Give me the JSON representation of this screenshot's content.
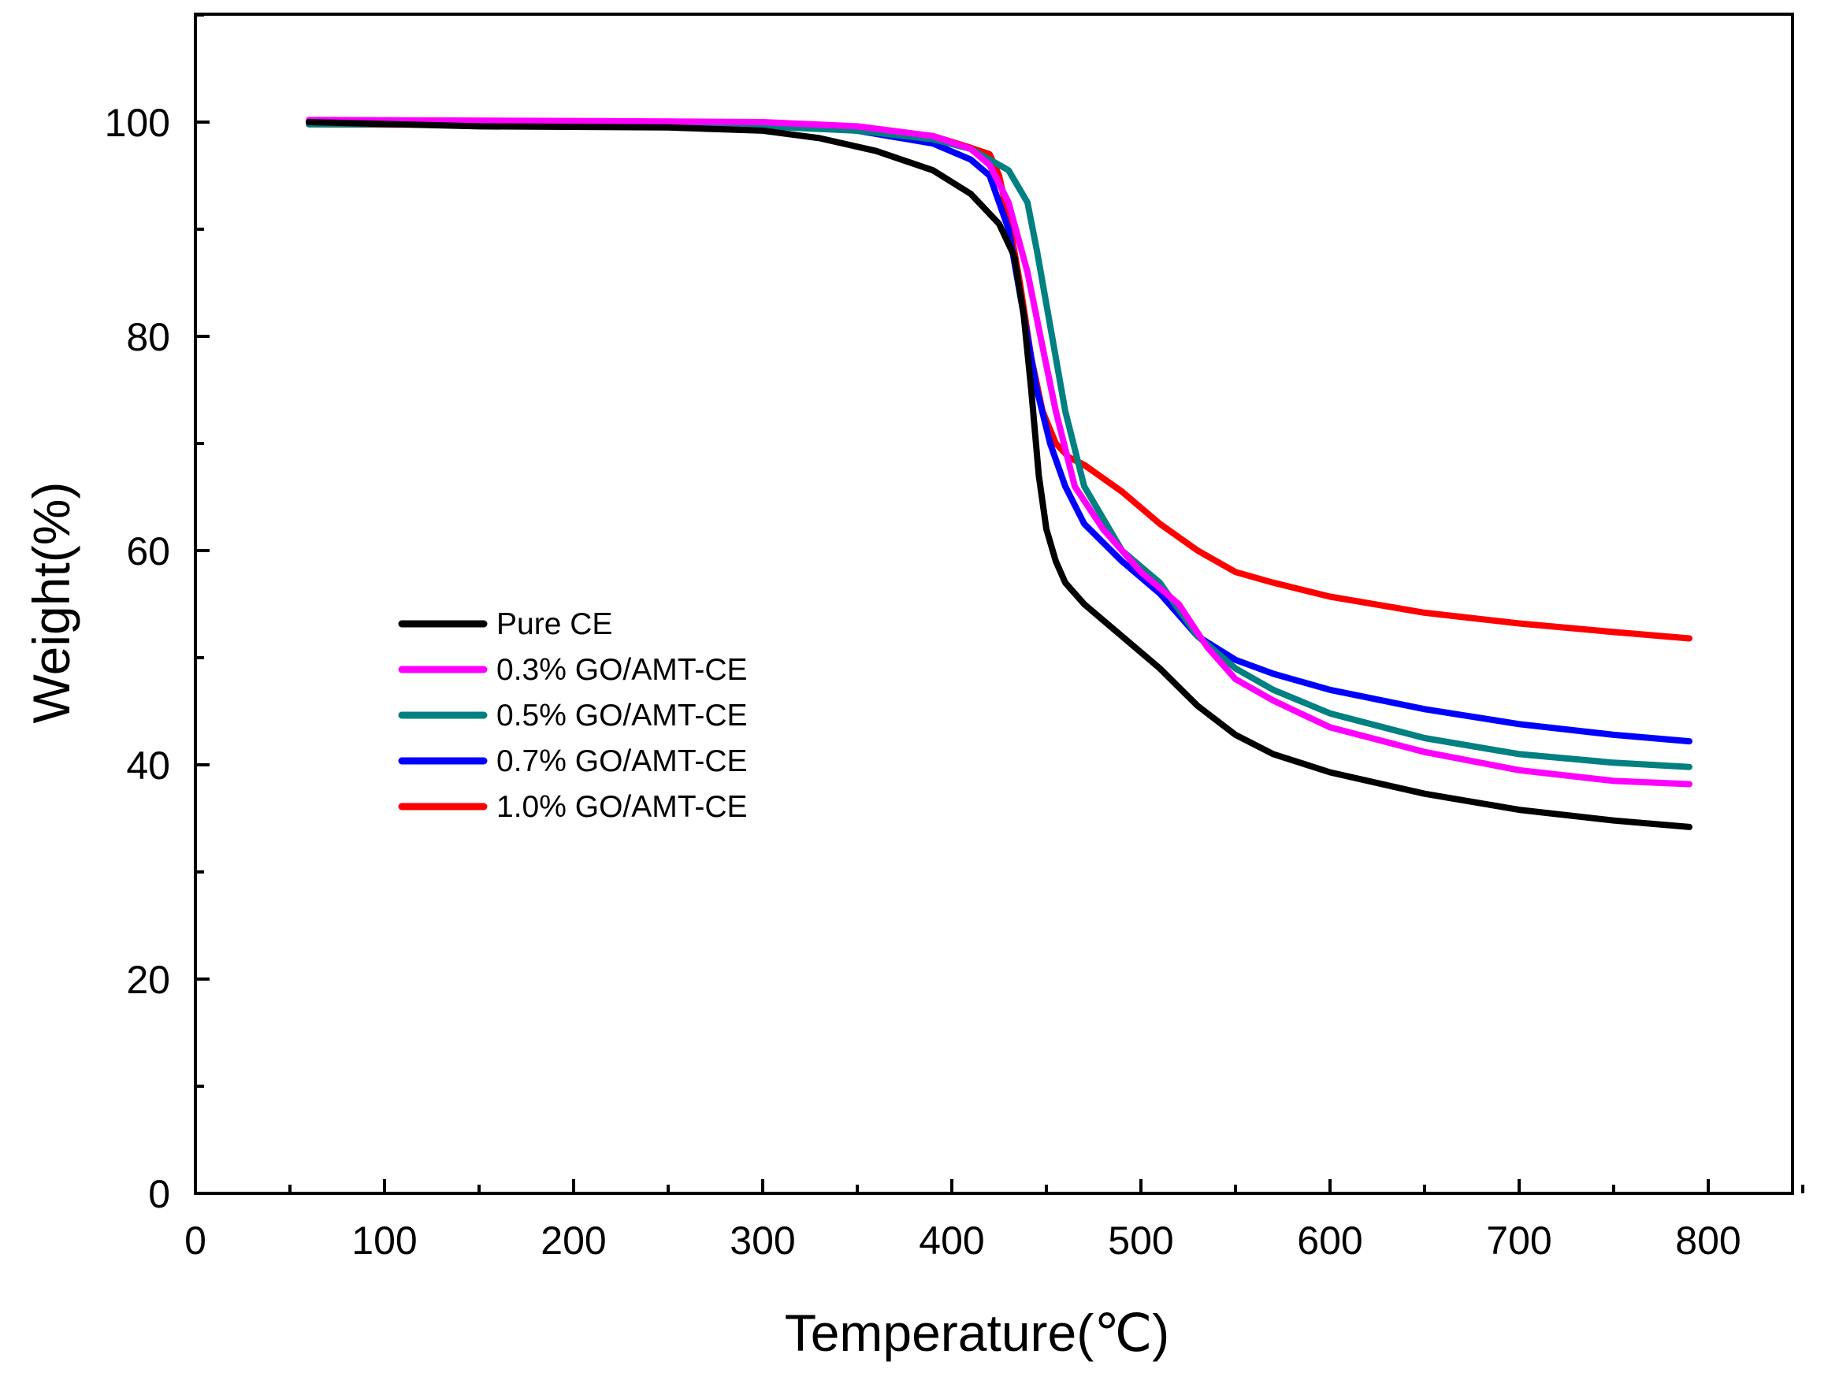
{
  "chart_data": {
    "type": "line",
    "title": "",
    "xlabel": "Temperature(℃)",
    "ylabel": "Weight(%)",
    "xlim": [
      0,
      850
    ],
    "ylim": [
      0,
      110
    ],
    "xticks": [
      0,
      100,
      200,
      300,
      400,
      500,
      600,
      700,
      800
    ],
    "yticks": [
      0,
      20,
      40,
      60,
      80,
      100
    ],
    "grid": false,
    "legend_position": "center-left",
    "series": [
      {
        "name": "Pure CE",
        "color": "#000000",
        "x": [
          60,
          150,
          250,
          300,
          330,
          360,
          390,
          410,
          425,
          433,
          438,
          442,
          446,
          450,
          455,
          460,
          470,
          490,
          510,
          530,
          550,
          570,
          600,
          650,
          700,
          750,
          790
        ],
        "y": [
          100,
          99.6,
          99.5,
          99.2,
          98.5,
          97.3,
          95.5,
          93.3,
          90.5,
          87.5,
          82,
          75,
          67,
          62,
          59,
          57,
          55,
          52,
          49,
          45.5,
          42.8,
          41,
          39.3,
          37.3,
          35.8,
          34.8,
          34.2
        ]
      },
      {
        "name": "0.3% GO/AMT-CE",
        "color": "#ff00ff",
        "x": [
          60,
          200,
          300,
          350,
          390,
          410,
          420,
          430,
          440,
          448,
          455,
          465,
          480,
          500,
          520,
          535,
          550,
          570,
          600,
          650,
          700,
          750,
          790
        ],
        "y": [
          100.2,
          100.1,
          100,
          99.6,
          98.7,
          97.5,
          96,
          92.5,
          86,
          79,
          73,
          66,
          62,
          58,
          55,
          51,
          48,
          46,
          43.5,
          41.2,
          39.5,
          38.5,
          38.2
        ]
      },
      {
        "name": "0.5% GO/AMT-CE",
        "color": "#008080",
        "x": [
          60,
          200,
          300,
          350,
          390,
          410,
          420,
          430,
          440,
          445,
          450,
          455,
          460,
          470,
          490,
          510,
          530,
          550,
          570,
          600,
          650,
          700,
          750,
          790
        ],
        "y": [
          99.8,
          99.8,
          99.6,
          99.2,
          98.4,
          97.5,
          96.5,
          95.5,
          92.5,
          88,
          83,
          78,
          73,
          66,
          60,
          57,
          52,
          49,
          47,
          44.8,
          42.5,
          41,
          40.2,
          39.8
        ]
      },
      {
        "name": "0.7% GO/AMT-CE",
        "color": "#0000ff",
        "x": [
          60,
          200,
          300,
          350,
          390,
          410,
          420,
          430,
          438,
          445,
          452,
          460,
          470,
          490,
          510,
          530,
          550,
          570,
          600,
          650,
          700,
          750,
          790
        ],
        "y": [
          100,
          100,
          99.8,
          99.2,
          98,
          96.5,
          95,
          90,
          82,
          75,
          70,
          66,
          62.5,
          59,
          56,
          52,
          49.8,
          48.5,
          47,
          45.2,
          43.8,
          42.8,
          42.2
        ]
      },
      {
        "name": "1.0% GO/AMT-CE",
        "color": "#ff0000",
        "x": [
          60,
          200,
          300,
          350,
          390,
          410,
          420,
          425,
          430,
          436,
          442,
          448,
          455,
          462,
          470,
          490,
          510,
          530,
          550,
          570,
          600,
          650,
          700,
          750,
          790
        ],
        "y": [
          99.8,
          99.7,
          99.6,
          99.3,
          98.7,
          97.6,
          97,
          95,
          91,
          85,
          78,
          73,
          70,
          68.7,
          68,
          65.5,
          62.5,
          60,
          58,
          57,
          55.7,
          54.2,
          53.2,
          52.4,
          51.8
        ]
      }
    ]
  }
}
